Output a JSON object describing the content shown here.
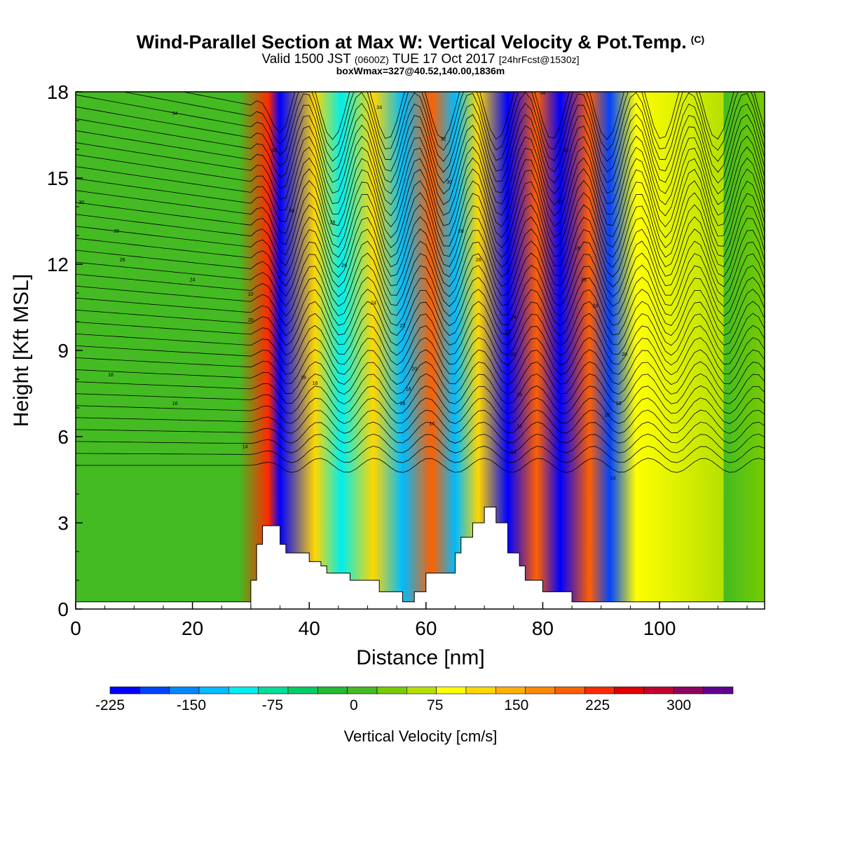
{
  "header": {
    "title": "Wind-Parallel Section at Max W: Vertical Velocity & Pot.Temp.",
    "title_tag": "(C)",
    "valid_prefix": "Valid 1500 JST",
    "valid_zulu": "(0600Z)",
    "valid_date": "TUE 17 Oct 2017",
    "forecast_info": "[24hrFcst@1530z]",
    "box_info": "boxWmax=327@40.52,140.00,1836m"
  },
  "chart_data": {
    "type": "heatmap",
    "xlabel": "Distance [nm]",
    "ylabel": "Height [Kft MSL]",
    "xlim": [
      0,
      118
    ],
    "ylim": [
      0,
      18
    ],
    "x_ticks": [
      0,
      20,
      40,
      60,
      80,
      100
    ],
    "y_ticks": [
      0,
      3,
      6,
      9,
      12,
      15,
      18
    ],
    "grid": false,
    "colorbar": {
      "label": "Vertical Velocity [cm/s]",
      "min": -225,
      "max": 350,
      "tick_labels": [
        "-225",
        "-150",
        "-75",
        "0",
        "75",
        "150",
        "225",
        "300"
      ],
      "tick_values": [
        -225,
        -150,
        -75,
        0,
        75,
        150,
        225,
        300
      ],
      "colors": [
        "#0000ff",
        "#0044ff",
        "#0088ff",
        "#00bbff",
        "#00eeee",
        "#00dd99",
        "#00cc66",
        "#22bb33",
        "#44bb22",
        "#77cc00",
        "#b6e000",
        "#ffff00",
        "#ffd700",
        "#ffb000",
        "#ff8800",
        "#ff6000",
        "#ff2a00",
        "#e00000",
        "#c00030",
        "#900060",
        "#600090"
      ],
      "orientation": "horizontal",
      "placement": "bottom"
    },
    "vertical_velocity_bands": [
      {
        "x": 33,
        "w": 225
      },
      {
        "x": 35,
        "w": -200
      },
      {
        "x": 41,
        "w": 120
      },
      {
        "x": 45.5,
        "w": -110
      },
      {
        "x": 51,
        "w": 120
      },
      {
        "x": 56,
        "w": -120
      },
      {
        "x": 61,
        "w": 190
      },
      {
        "x": 65,
        "w": -130
      },
      {
        "x": 69,
        "w": 120
      },
      {
        "x": 74,
        "w": -210
      },
      {
        "x": 79,
        "w": 200
      },
      {
        "x": 83,
        "w": -220
      },
      {
        "x": 88,
        "w": 210
      },
      {
        "x": 91.5,
        "w": -180
      },
      {
        "x": 96,
        "w": 80
      },
      {
        "x": 111,
        "w": 60
      }
    ],
    "terrain_profile": [
      [
        30,
        0
      ],
      [
        30,
        1
      ],
      [
        31,
        1
      ],
      [
        31,
        2.25
      ],
      [
        32,
        2.25
      ],
      [
        32,
        2.9
      ],
      [
        35,
        2.9
      ],
      [
        35,
        2.25
      ],
      [
        36,
        2.25
      ],
      [
        36,
        1.95
      ],
      [
        40,
        1.95
      ],
      [
        40,
        1.65
      ],
      [
        42,
        1.65
      ],
      [
        42,
        1.5
      ],
      [
        43,
        1.5
      ],
      [
        43,
        1.25
      ],
      [
        47,
        1.25
      ],
      [
        47,
        1.0
      ],
      [
        52,
        1.0
      ],
      [
        52,
        0.6
      ],
      [
        56,
        0.6
      ],
      [
        56,
        0.25
      ],
      [
        58,
        0.25
      ],
      [
        58,
        0.6
      ],
      [
        60,
        0.6
      ],
      [
        60,
        1.25
      ],
      [
        65,
        1.25
      ],
      [
        65,
        1.95
      ],
      [
        66,
        1.95
      ],
      [
        66,
        2.5
      ],
      [
        68,
        2.5
      ],
      [
        68,
        3.0
      ],
      [
        70,
        3.0
      ],
      [
        70,
        3.55
      ],
      [
        72,
        3.55
      ],
      [
        72,
        3.0
      ],
      [
        74,
        3.0
      ],
      [
        74,
        1.95
      ],
      [
        76,
        1.95
      ],
      [
        76,
        1.5
      ],
      [
        77,
        1.5
      ],
      [
        77,
        1.0
      ],
      [
        80,
        1.0
      ],
      [
        80,
        0.6
      ],
      [
        85,
        0.6
      ],
      [
        85,
        0.25
      ],
      [
        118,
        0.25
      ]
    ],
    "isentrope_labels": [
      {
        "x": 17,
        "y": 17.2,
        "text": "34"
      },
      {
        "x": 52,
        "y": 17.4,
        "text": "34"
      },
      {
        "x": 80,
        "y": 17.9,
        "text": "34"
      },
      {
        "x": 1,
        "y": 14.1,
        "text": "30"
      },
      {
        "x": 34,
        "y": 15.9,
        "text": "30"
      },
      {
        "x": 37,
        "y": 13.8,
        "text": "30"
      },
      {
        "x": 63,
        "y": 16.3,
        "text": "32"
      },
      {
        "x": 64,
        "y": 14.8,
        "text": "30"
      },
      {
        "x": 84,
        "y": 15.9,
        "text": "32"
      },
      {
        "x": 83,
        "y": 14.1,
        "text": "30"
      },
      {
        "x": 7,
        "y": 13.1,
        "text": "28"
      },
      {
        "x": 8,
        "y": 12.1,
        "text": "26"
      },
      {
        "x": 20,
        "y": 11.4,
        "text": "24"
      },
      {
        "x": 44,
        "y": 13.4,
        "text": "28"
      },
      {
        "x": 66,
        "y": 13.1,
        "text": "28"
      },
      {
        "x": 46,
        "y": 11.9,
        "text": "26"
      },
      {
        "x": 69,
        "y": 12.1,
        "text": "26"
      },
      {
        "x": 86,
        "y": 12.5,
        "text": "28"
      },
      {
        "x": 87,
        "y": 11.4,
        "text": "26"
      },
      {
        "x": 30,
        "y": 10.9,
        "text": "22"
      },
      {
        "x": 51,
        "y": 10.6,
        "text": "24"
      },
      {
        "x": 30,
        "y": 10.0,
        "text": "20"
      },
      {
        "x": 89,
        "y": 10.5,
        "text": "24"
      },
      {
        "x": 75,
        "y": 10.1,
        "text": "24"
      },
      {
        "x": 56,
        "y": 9.8,
        "text": "22"
      },
      {
        "x": 74,
        "y": 9.6,
        "text": "22"
      },
      {
        "x": 75,
        "y": 8.8,
        "text": "20"
      },
      {
        "x": 94,
        "y": 8.8,
        "text": "20"
      },
      {
        "x": 58,
        "y": 8.3,
        "text": "20"
      },
      {
        "x": 39,
        "y": 8.0,
        "text": "18"
      },
      {
        "x": 41,
        "y": 7.8,
        "text": "16"
      },
      {
        "x": 57,
        "y": 7.6,
        "text": "18"
      },
      {
        "x": 6,
        "y": 8.1,
        "text": "18"
      },
      {
        "x": 17,
        "y": 7.1,
        "text": "16"
      },
      {
        "x": 56,
        "y": 7.1,
        "text": "16"
      },
      {
        "x": 76,
        "y": 7.4,
        "text": "16"
      },
      {
        "x": 93,
        "y": 7.1,
        "text": "18"
      },
      {
        "x": 91,
        "y": 6.7,
        "text": "16"
      },
      {
        "x": 61,
        "y": 6.4,
        "text": "14"
      },
      {
        "x": 76,
        "y": 6.3,
        "text": "16"
      },
      {
        "x": 75,
        "y": 5.4,
        "text": "14"
      },
      {
        "x": 29,
        "y": 5.6,
        "text": "14"
      },
      {
        "x": 92,
        "y": 4.5,
        "text": "14"
      }
    ]
  }
}
